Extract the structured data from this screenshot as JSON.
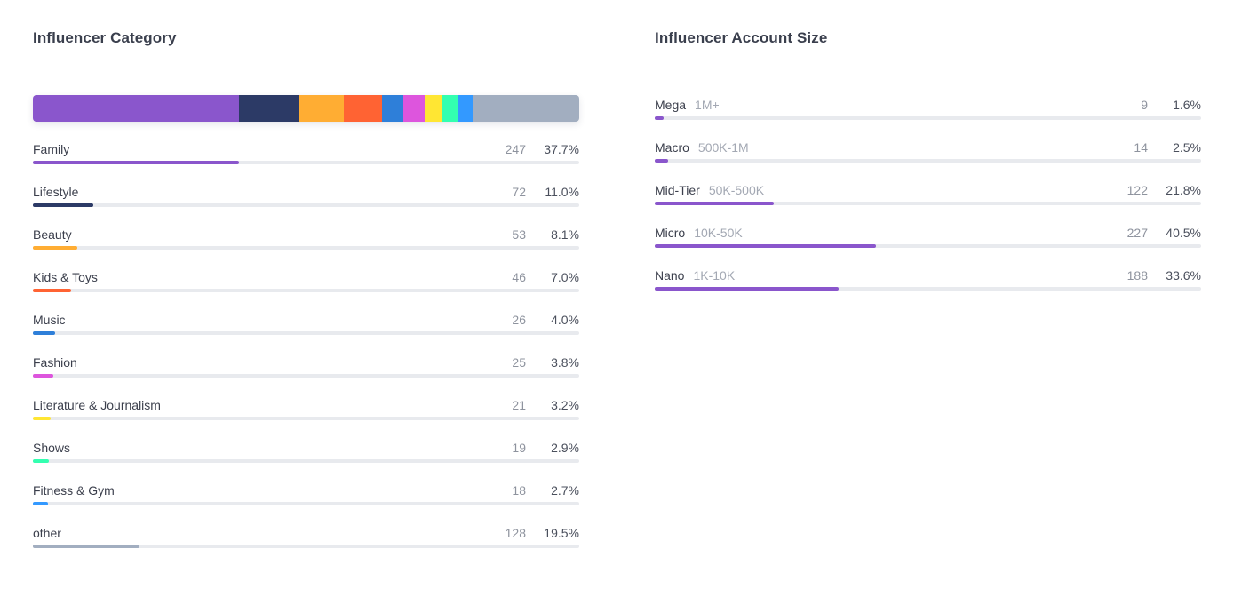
{
  "category_panel": {
    "title": "Influencer Category"
  },
  "size_panel": {
    "title": "Influencer Account Size"
  },
  "colors": {
    "track": "#e8eaee",
    "size_bar": "#8a56cc"
  },
  "chart_data": [
    {
      "type": "bar",
      "title": "Influencer Category",
      "categories": [
        "Family",
        "Lifestyle",
        "Beauty",
        "Kids & Toys",
        "Music",
        "Fashion",
        "Literature & Journalism",
        "Shows",
        "Fitness & Gym",
        "other"
      ],
      "counts": [
        "247",
        "72",
        "53",
        "46",
        "26",
        "25",
        "21",
        "19",
        "18",
        "128"
      ],
      "percents": [
        "37.7%",
        "11.0%",
        "8.1%",
        "7.0%",
        "4.0%",
        "3.8%",
        "3.2%",
        "2.9%",
        "2.7%",
        "19.5%"
      ],
      "values": [
        37.7,
        11.0,
        8.1,
        7.0,
        4.0,
        3.8,
        3.2,
        2.9,
        2.7,
        19.5
      ],
      "colors": [
        "#8a56cc",
        "#2c3a66",
        "#ffad33",
        "#ff6333",
        "#2e7fd9",
        "#dd55dd",
        "#ffe633",
        "#33ffb0",
        "#3399ff",
        "#a2aec0"
      ]
    },
    {
      "type": "bar",
      "title": "Influencer Account Size",
      "categories": [
        "Mega",
        "Macro",
        "Mid-Tier",
        "Micro",
        "Nano"
      ],
      "ranges": [
        "1M+",
        "500K-1M",
        "50K-500K",
        "10K-50K",
        "1K-10K"
      ],
      "counts": [
        "9",
        "14",
        "122",
        "227",
        "188"
      ],
      "percents": [
        "1.6%",
        "2.5%",
        "21.8%",
        "40.5%",
        "33.6%"
      ],
      "values": [
        1.6,
        2.5,
        21.8,
        40.5,
        33.6
      ]
    }
  ]
}
